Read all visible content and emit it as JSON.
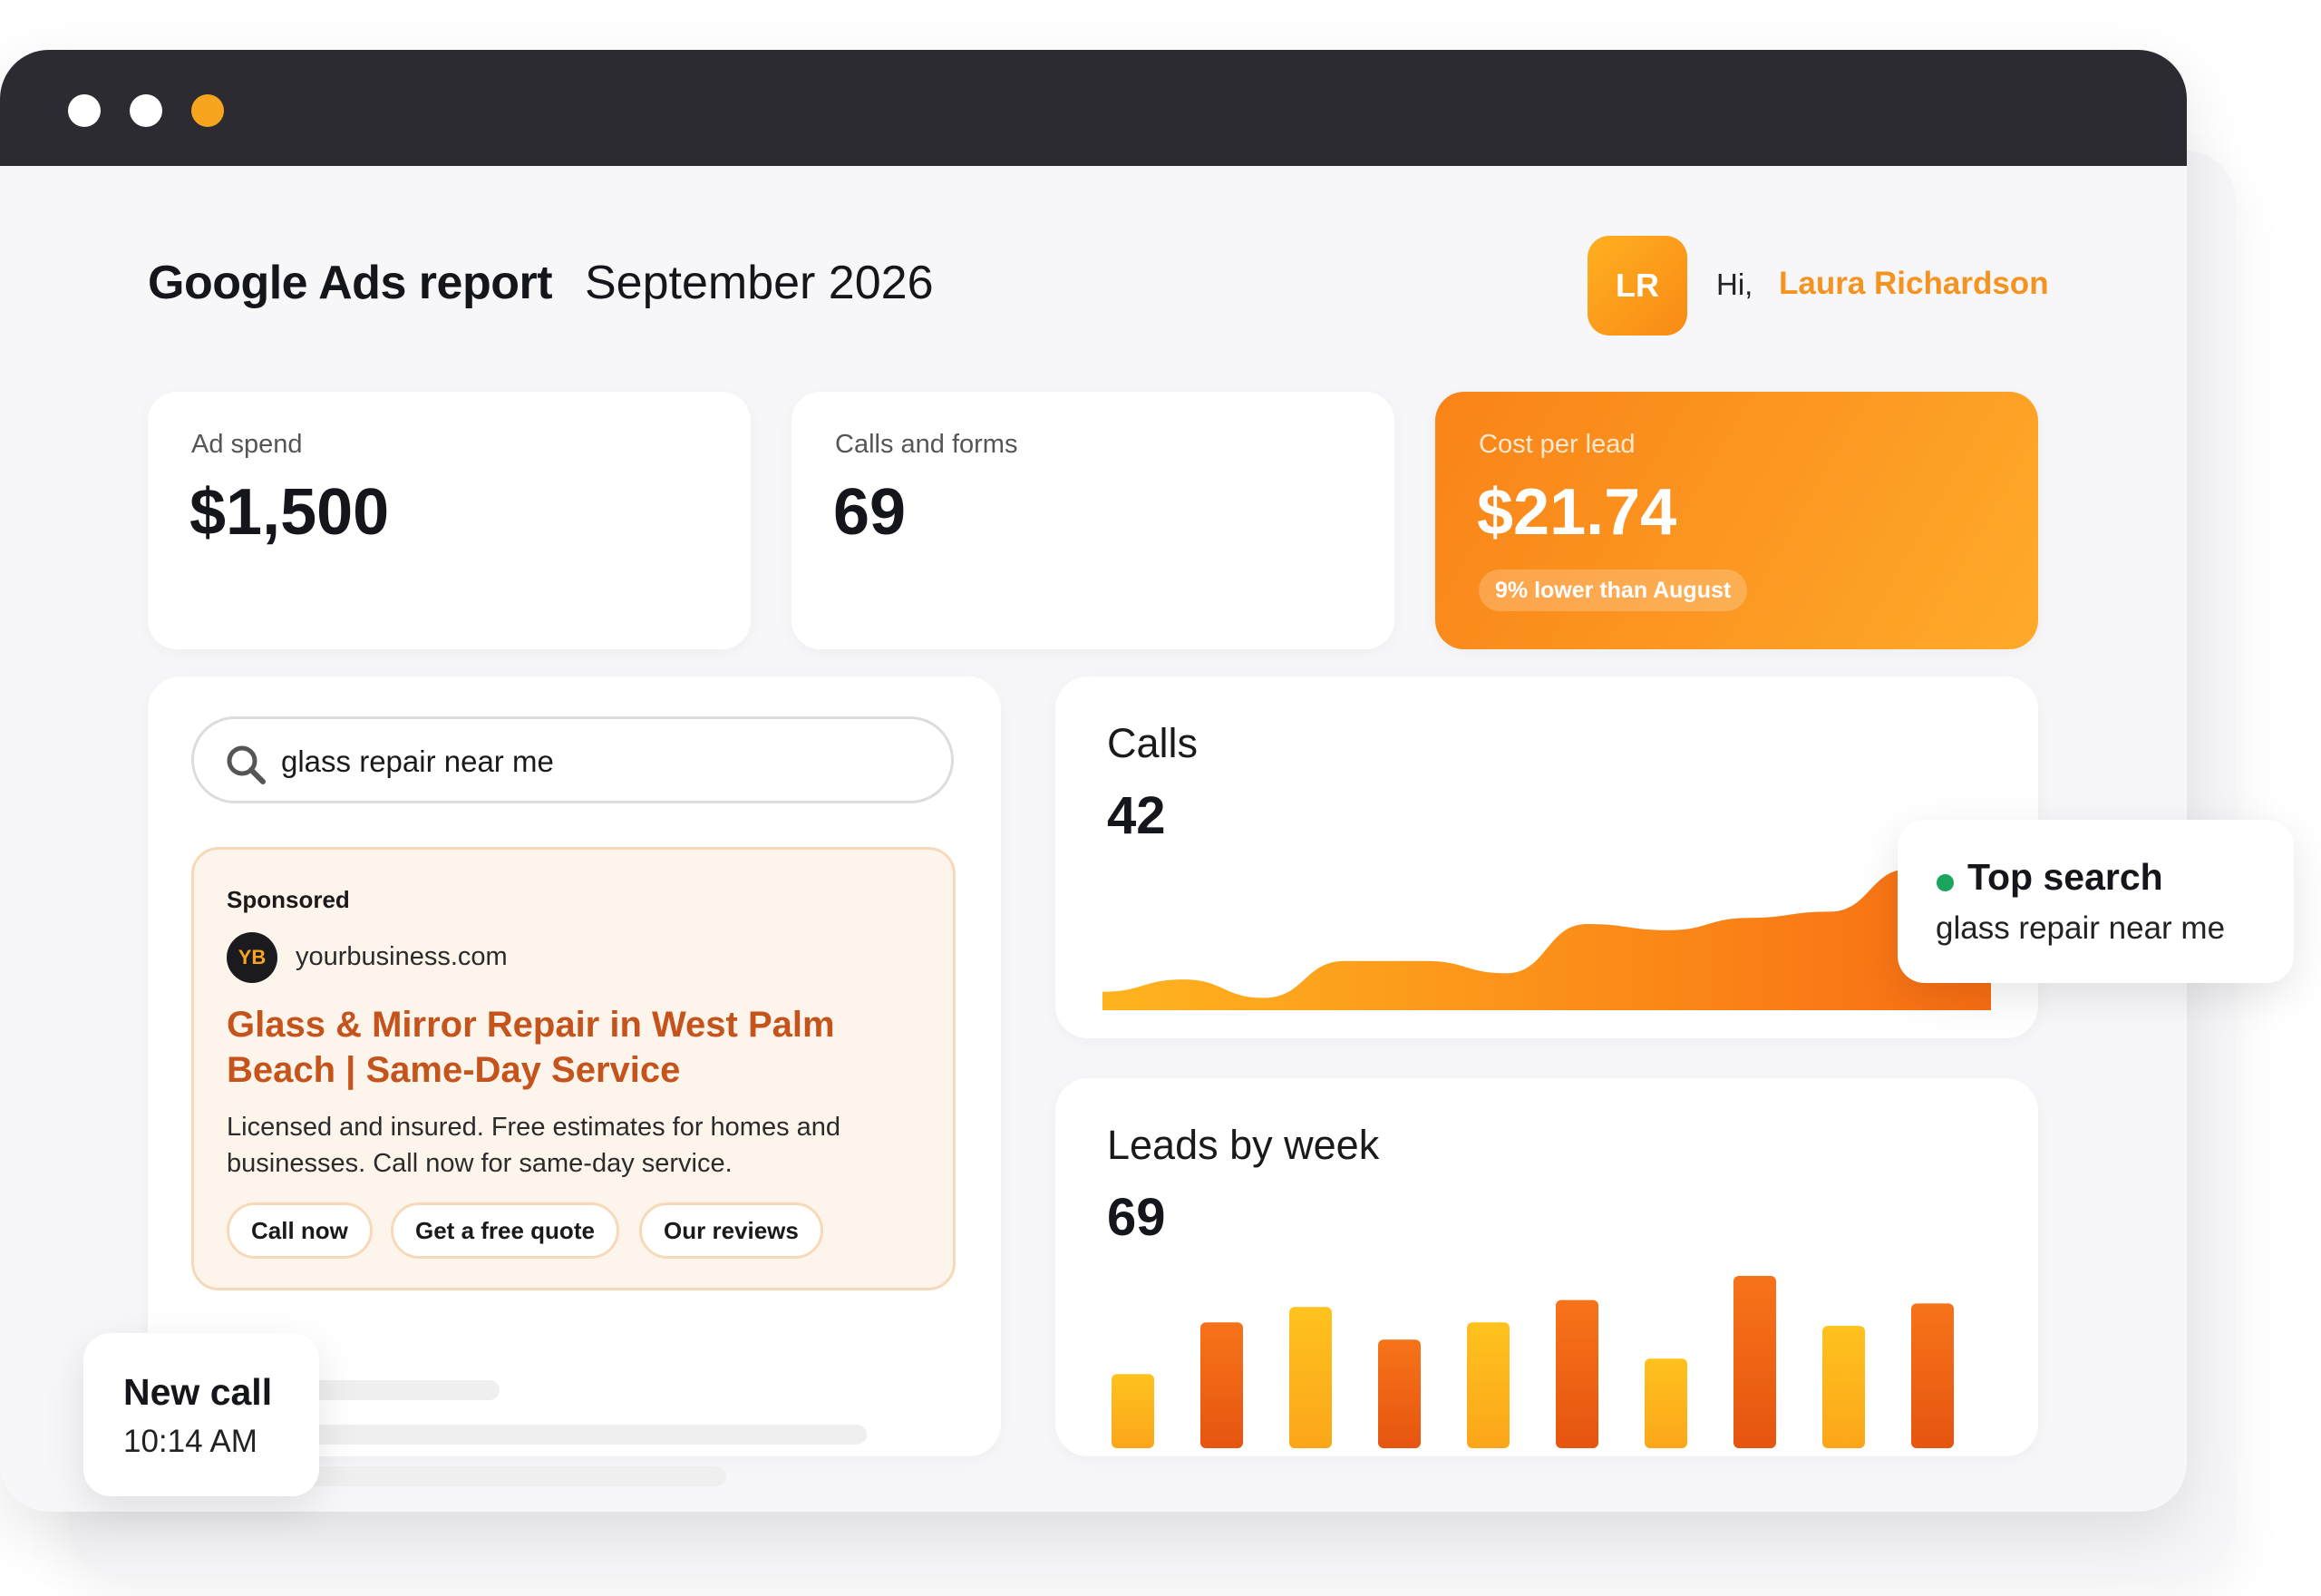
{
  "window": {
    "controls": [
      "close",
      "minimize",
      "maximize"
    ]
  },
  "header": {
    "title": "Google Ads report",
    "period": "September 2026",
    "user": {
      "initials": "LR",
      "greeting": "Hi,",
      "name": "Laura Richardson"
    }
  },
  "stats": [
    {
      "label": "Ad spend",
      "value": "$1,500"
    },
    {
      "label": "Calls and forms",
      "value": "69"
    },
    {
      "label": "Cost per lead",
      "value": "$21.74",
      "badge": "9% lower than August"
    }
  ],
  "search": {
    "query": "glass repair near me",
    "icon": "search-icon"
  },
  "ad": {
    "label": "Sponsored",
    "logo_initials": "YB",
    "domain": "yourbusiness.com",
    "headline": "Glass & Mirror Repair in West Palm Beach | Same-Day Service",
    "description": "Licensed and insured. Free estimates for homes and businesses. Call now for same-day service.",
    "buttons": [
      "Call now",
      "Get a free quote",
      "Our reviews"
    ]
  },
  "calls_card": {
    "title": "Calls",
    "value": "42"
  },
  "leads_card": {
    "title": "Leads by week",
    "value": "69"
  },
  "top_search": {
    "title": "Top search",
    "value": "glass repair near me"
  },
  "new_call": {
    "title": "New call",
    "time": "10:14 AM"
  },
  "colors": {
    "accent": "#f98a15",
    "accent_light": "#ffb020",
    "accent_dark": "#e8580f",
    "headline": "#c5531c",
    "status": "#1ba45b",
    "titlebar": "#2b2b31"
  },
  "chart_data": [
    {
      "type": "area",
      "x": [
        1,
        2,
        3,
        4,
        5,
        6,
        7,
        8,
        9,
        10,
        11,
        12
      ],
      "y": [
        3,
        5,
        2,
        8,
        8,
        6,
        14,
        13,
        15,
        16,
        23,
        24
      ],
      "ylim": [
        0,
        28
      ],
      "grid": false
    },
    {
      "type": "bar",
      "categories": [
        "1",
        "2",
        "3",
        "4",
        "5",
        "6",
        "7",
        "8",
        "9",
        "10"
      ],
      "values": [
        4.3,
        7.3,
        8.2,
        6.3,
        7.3,
        8.6,
        5.2,
        10,
        7.1,
        8.4
      ],
      "ylim": [
        0,
        10
      ],
      "grid": false
    }
  ]
}
